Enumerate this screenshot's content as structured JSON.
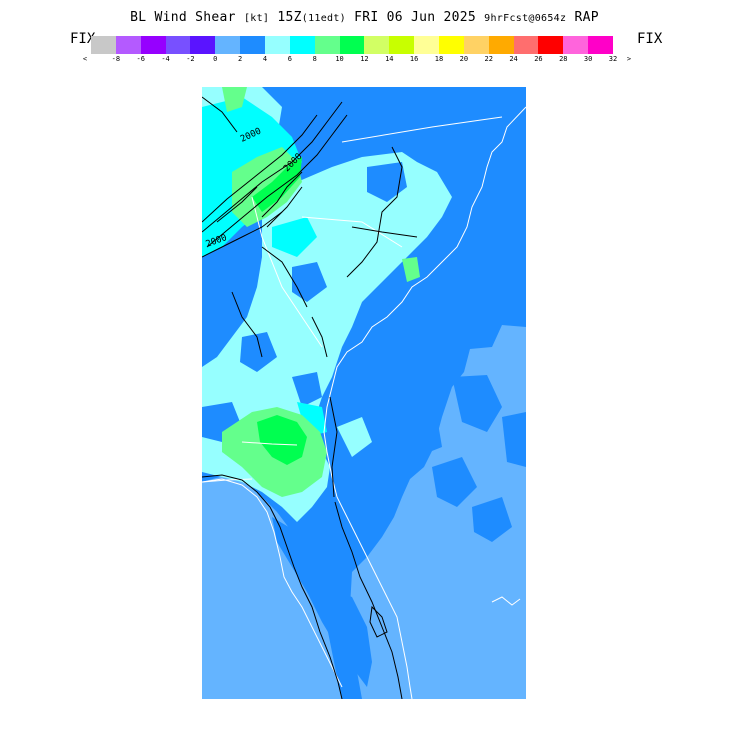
{
  "header": {
    "title_main": "BL Wind Shear ",
    "title_units": "[kt]",
    "title_time": " 15Z",
    "title_local": "(11edt)",
    "title_date": " FRI 06 Jun 2025 ",
    "title_fcst": "9hrFcst@0654z",
    "title_model": " RAP"
  },
  "legend": {
    "fix_left": "FIX",
    "fix_right": "FIX",
    "colors": [
      "#c8c8c8",
      "#b45aff",
      "#9600ff",
      "#7850ff",
      "#5a14ff",
      "#64b4ff",
      "#1e8cff",
      "#96ffff",
      "#00ffff",
      "#64ff8c",
      "#00ff50",
      "#d2ff64",
      "#c8ff00",
      "#ffff96",
      "#ffff00",
      "#ffd264",
      "#ffaa00",
      "#ff6e6e",
      "#ff0000",
      "#ff64dc",
      "#ff00c8"
    ],
    "tick_labels": [
      "<",
      "-8",
      "-6",
      "-4",
      "-2",
      "0",
      "2",
      "4",
      "6",
      "8",
      "10",
      "12",
      "14",
      "16",
      "18",
      "20",
      "22",
      "24",
      "26",
      "28",
      "30",
      "32",
      ">"
    ]
  },
  "map": {
    "region": "Southeast US coast (Carolinas, Georgia, Florida)",
    "contour_label": "2000",
    "colors": {
      "light_blue": "#64b4ff",
      "blue": "#1e8cff",
      "pale_cyan": "#96ffff",
      "cyan": "#00ffff",
      "light_green": "#64ff8c",
      "green": "#00ff50"
    }
  }
}
